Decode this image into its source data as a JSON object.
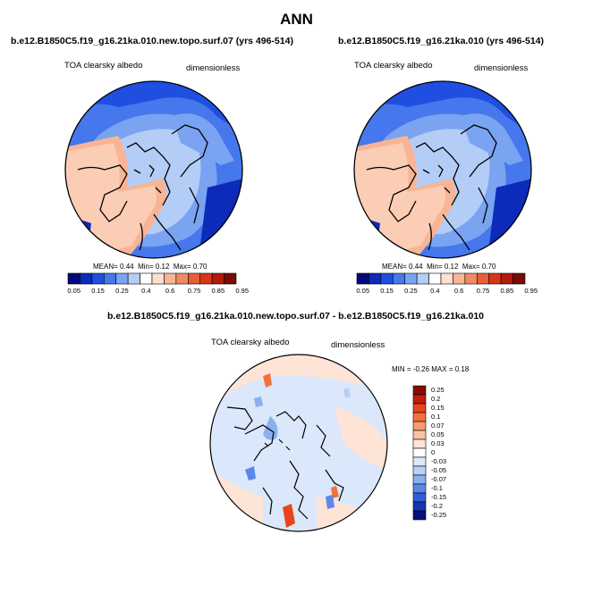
{
  "title": "ANN",
  "panels": [
    {
      "case_title": "b.e12.B1850C5.f19_g16.21ka.010.new.topo.surf.07 (yrs 496-514)",
      "variable": "TOA clearsky albedo",
      "units": "dimensionless",
      "stats": {
        "mean_label": "MEAN=",
        "mean": "0.44",
        "min_label": "Min=",
        "min": "0.12",
        "max_label": "Max=",
        "max": "0.70"
      }
    },
    {
      "case_title": "b.e12.B1850C5.f19_g16.21ka.010 (yrs 496-514)",
      "variable": "TOA clearsky albedo",
      "units": "dimensionless",
      "stats": {
        "mean_label": "MEAN=",
        "mean": "0.44",
        "min_label": "Min=",
        "min": "0.12",
        "max_label": "Max=",
        "max": "0.70"
      }
    },
    {
      "case_title": "b.e12.B1850C5.f19_g16.21ka.010.new.topo.surf.07 - b.e12.B1850C5.f19_g16.21ka.010",
      "variable": "TOA clearsky albedo",
      "units": "dimensionless",
      "stats": {
        "min_label": "MIN =",
        "min": "-0.26",
        "max_label": "MAX =",
        "max": "0.18"
      }
    }
  ],
  "colorbar_abs": {
    "labels": [
      "0.05",
      "0.15",
      "0.25",
      "0.4",
      "0.6",
      "0.75",
      "0.85",
      "0.95"
    ],
    "colors": [
      "#050a7a",
      "#0b2bb8",
      "#1f4fe0",
      "#4677ec",
      "#7aa3f2",
      "#b3cdf6",
      "#ffffff",
      "#fde0d0",
      "#f8b596",
      "#f08a63",
      "#e85e36",
      "#d63518",
      "#b01b0a",
      "#7a0a04"
    ]
  },
  "colorbar_diff": {
    "labels": [
      "0.25",
      "0.2",
      "0.15",
      "0.1",
      "0.07",
      "0.05",
      "0.03",
      "0",
      "-0.03",
      "-0.05",
      "-0.07",
      "-0.1",
      "-0.15",
      "-0.2",
      "-0.25"
    ],
    "colors": [
      "#8b0a04",
      "#c01d0c",
      "#e8451e",
      "#f4703f",
      "#f99a70",
      "#fcc0a3",
      "#fde4d6",
      "#ffffff",
      "#dbe8fb",
      "#b7d0f6",
      "#8ab0f0",
      "#5b88e8",
      "#2f5fd8",
      "#1236b4",
      "#06127a"
    ]
  }
}
